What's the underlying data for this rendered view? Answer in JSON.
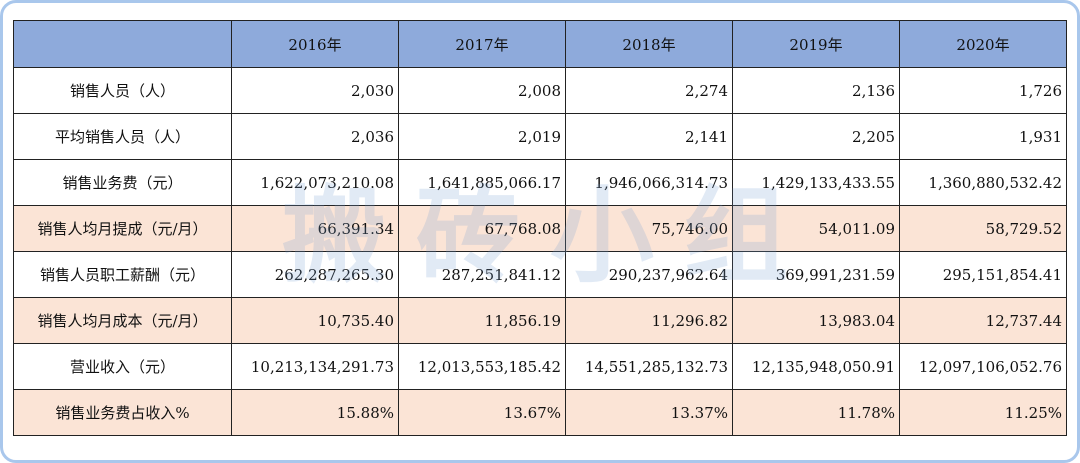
{
  "table": {
    "header": [
      "",
      "2016年",
      "2017年",
      "2018年",
      "2019年",
      "2020年"
    ],
    "rows": [
      {
        "label": "销售人员（人）",
        "values": [
          "2,030",
          "2,008",
          "2,274",
          "2,136",
          "1,726"
        ],
        "highlight": false
      },
      {
        "label": "平均销售人员（人）",
        "values": [
          "2,036",
          "2,019",
          "2,141",
          "2,205",
          "1,931"
        ],
        "highlight": false
      },
      {
        "label": "销售业务费（元）",
        "values": [
          "1,622,073,210.08",
          "1,641,885,066.17",
          "1,946,066,314.73",
          "1,429,133,433.55",
          "1,360,880,532.42"
        ],
        "highlight": false
      },
      {
        "label": "销售人均月提成（元/月）",
        "values": [
          "66,391.34",
          "67,768.08",
          "75,746.00",
          "54,011.09",
          "58,729.52"
        ],
        "highlight": true
      },
      {
        "label": "销售人员职工薪酬（元）",
        "values": [
          "262,287,265.30",
          "287,251,841.12",
          "290,237,962.64",
          "369,991,231.59",
          "295,151,854.41"
        ],
        "highlight": false
      },
      {
        "label": "销售人均月成本（元/月）",
        "values": [
          "10,735.40",
          "11,856.19",
          "11,296.82",
          "13,983.04",
          "12,737.44"
        ],
        "highlight": true
      },
      {
        "label": "营业收入（元）",
        "values": [
          "10,213,134,291.73",
          "12,013,553,185.42",
          "14,551,285,132.73",
          "12,135,948,050.91",
          "12,097,106,052.76"
        ],
        "highlight": false
      },
      {
        "label": "销售业务费占收入%",
        "values": [
          "15.88%",
          "13.67%",
          "13.37%",
          "11.78%",
          "11.25%"
        ],
        "highlight": true
      }
    ]
  },
  "watermark": "搬砖小组",
  "colors": {
    "header_bg": "#8eaadb",
    "highlight_row_bg": "#fbe4d6",
    "frame_border": "#a9c7ec"
  }
}
